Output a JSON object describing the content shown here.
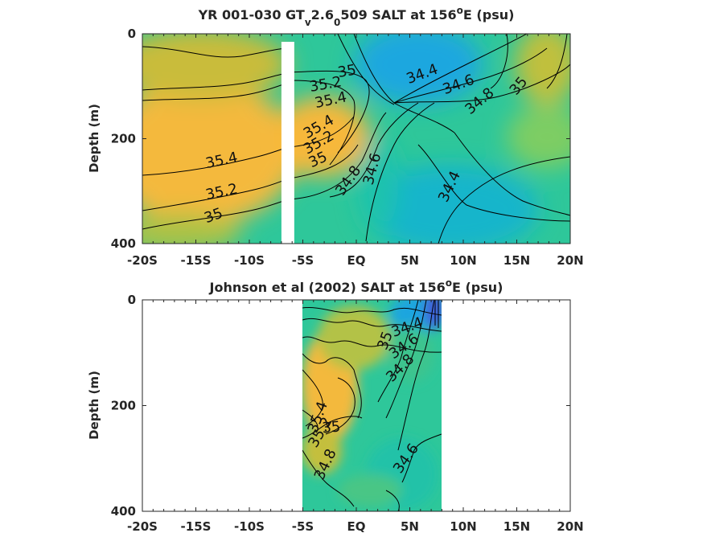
{
  "chart_data": [
    {
      "type": "heatmap",
      "title_parts": {
        "pre": "YR 001-030 GT",
        "sub1": "v",
        "mid": "2.6",
        "sub2": "0",
        "post": "509 SALT at 156",
        "sup": "o",
        "end": "E (psu)"
      },
      "ylabel": "Depth (m)",
      "xlim": [
        -20,
        20
      ],
      "ylim": [
        0,
        400
      ],
      "x_ticks": [
        -20,
        -15,
        -10,
        -5,
        0,
        5,
        10,
        15,
        20
      ],
      "x_tick_labels": [
        "-20S",
        "-15S",
        "-10S",
        "-5S",
        "EQ",
        "5N",
        "10N",
        "15N",
        "20N"
      ],
      "y_ticks": [
        0,
        200,
        400
      ],
      "y_tick_labels": [
        "0",
        "200",
        "400"
      ],
      "colorscale": [
        "#3e4fd6",
        "#1a9fe6",
        "#14bdbe",
        "#2ec79a",
        "#7fc95c",
        "#c3bf3a",
        "#f9ba38"
      ],
      "color_range": [
        34.0,
        35.6
      ],
      "contour_levels": [
        34.4,
        34.6,
        34.8,
        35.0,
        35.2,
        35.4
      ],
      "masked_band_x": [
        -7.0,
        -5.8
      ],
      "contour_labels": [
        {
          "text": "35",
          "x": -0.8,
          "y": 80,
          "rot": -10
        },
        {
          "text": "35.2",
          "x": -2.8,
          "y": 105,
          "rot": -10
        },
        {
          "text": "35.4",
          "x": -2.3,
          "y": 135,
          "rot": -12
        },
        {
          "text": "35.4",
          "x": -12.5,
          "y": 250,
          "rot": -12
        },
        {
          "text": "35.2",
          "x": -12.5,
          "y": 310,
          "rot": -12
        },
        {
          "text": "35",
          "x": -13.2,
          "y": 355,
          "rot": -20
        },
        {
          "text": "35.4",
          "x": -3.3,
          "y": 185,
          "rot": -30
        },
        {
          "text": "35.2",
          "x": -3.3,
          "y": 215,
          "rot": -30
        },
        {
          "text": "35",
          "x": -3.4,
          "y": 248,
          "rot": -25
        },
        {
          "text": "34.8",
          "x": -0.4,
          "y": 285,
          "rot": -55
        },
        {
          "text": "34.6",
          "x": 1.9,
          "y": 260,
          "rot": -75
        },
        {
          "text": "34.4",
          "x": 6.3,
          "y": 85,
          "rot": -20
        },
        {
          "text": "34.6",
          "x": 9.7,
          "y": 105,
          "rot": -20
        },
        {
          "text": "34.8",
          "x": 11.8,
          "y": 135,
          "rot": -40
        },
        {
          "text": "35",
          "x": 15.5,
          "y": 105,
          "rot": -50
        },
        {
          "text": "34.4",
          "x": 9.1,
          "y": 295,
          "rot": -65
        }
      ]
    },
    {
      "type": "heatmap",
      "title_parts": {
        "pre": "Johnson et al (2002) SALT at 156",
        "sup": "o",
        "end": "E (psu)"
      },
      "ylabel": "Depth (m)",
      "xlim": [
        -20,
        20
      ],
      "ylim": [
        0,
        400
      ],
      "x_ticks": [
        -20,
        -15,
        -10,
        -5,
        0,
        5,
        10,
        15,
        20
      ],
      "x_tick_labels": [
        "-20S",
        "-15S",
        "-10S",
        "-5S",
        "EQ",
        "5N",
        "10N",
        "15N",
        "20N"
      ],
      "y_ticks": [
        0,
        200,
        400
      ],
      "y_tick_labels": [
        "0",
        "200",
        "400"
      ],
      "data_extent_x": [
        -5,
        8
      ],
      "contour_levels": [
        34.4,
        34.6,
        34.8,
        35.0,
        35.2,
        35.4
      ],
      "contour_labels": [
        {
          "text": "34.4",
          "x": 4.9,
          "y": 60,
          "rot": -20
        },
        {
          "text": "34.6",
          "x": 4.7,
          "y": 95,
          "rot": -35
        },
        {
          "text": "34.8",
          "x": 4.4,
          "y": 135,
          "rot": -45
        },
        {
          "text": "35",
          "x": 3.1,
          "y": 80,
          "rot": -70
        },
        {
          "text": "35.4",
          "x": -3.2,
          "y": 225,
          "rot": -70
        },
        {
          "text": "35.2",
          "x": -3.0,
          "y": 255,
          "rot": -60
        },
        {
          "text": "35",
          "x": -2.3,
          "y": 250,
          "rot": -5
        },
        {
          "text": "34.8",
          "x": -2.5,
          "y": 315,
          "rot": -65
        },
        {
          "text": "34.6",
          "x": 5.0,
          "y": 305,
          "rot": -55
        }
      ]
    }
  ]
}
